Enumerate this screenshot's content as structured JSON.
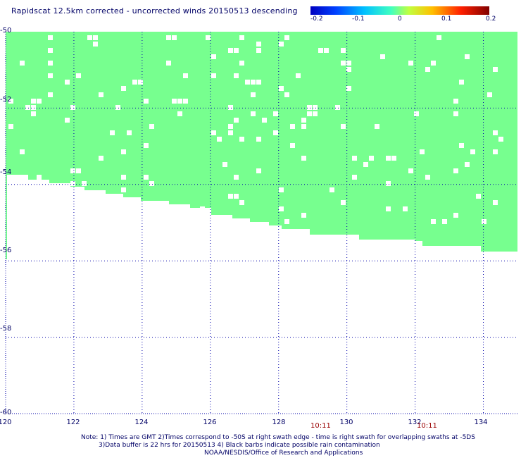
{
  "title": "Rapidscat 12.5km corrected - uncorrected winds 20150513 descending",
  "colorbar": {
    "ticks": [
      "-0.2",
      "-0.1",
      "0",
      "0.1",
      "0.2"
    ],
    "colors": [
      "#0000c0",
      "#0060ff",
      "#00e0ff",
      "#80ff80",
      "#ffff00",
      "#ff8000",
      "#ff0000",
      "#800000"
    ]
  },
  "map": {
    "lon_range": [
      120,
      135
    ],
    "lat_range": [
      -60,
      -50
    ],
    "lon_ticks": [
      "120",
      "122",
      "124",
      "126",
      "128",
      "130",
      "132",
      "134"
    ],
    "lat_ticks": [
      "-50",
      "-52",
      "-54",
      "-56",
      "-58",
      "-60"
    ],
    "swath_color": "#77ff8f",
    "grid_color": "#0000aa"
  },
  "times": [
    "10:11",
    "10:11"
  ],
  "notes": [
    "Note: 1) Times are GMT 2)Times correspond to -50S at right swath edge - time is right swath for overlapping swaths at -5DS",
    "3)Data buffer is 22 hrs for 20150513 4) Black barbs indicate possible rain contamination",
    "NOAA/NESDIS/Office of Research and Applications"
  ]
}
